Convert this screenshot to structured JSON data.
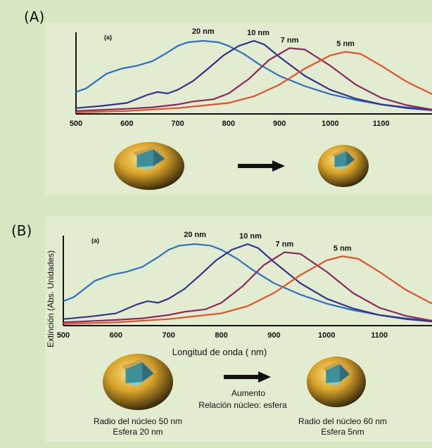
{
  "panels": [
    {
      "label": "(A)",
      "chart_data": {
        "type": "line",
        "panel_tag": "(a)",
        "xlabel": "",
        "ylabel": "",
        "xlim": [
          500,
          1200
        ],
        "xticks": [
          500,
          600,
          700,
          800,
          900,
          1000,
          1100
        ],
        "series": [
          {
            "name": "20 nm",
            "color": "#2f6fc0",
            "x": [
              500,
              520,
              560,
              590,
              620,
              650,
              680,
              700,
              720,
              750,
              780,
              800,
              830,
              860,
              900,
              950,
              1000,
              1050,
              1100,
              1150,
              1200
            ],
            "y": [
              0.3,
              0.35,
              0.55,
              0.62,
              0.66,
              0.72,
              0.84,
              0.93,
              0.98,
              1.0,
              0.98,
              0.93,
              0.82,
              0.68,
              0.52,
              0.38,
              0.27,
              0.19,
              0.13,
              0.09,
              0.06
            ]
          },
          {
            "name": "10 nm",
            "color": "#34338a",
            "x": [
              500,
              550,
              600,
              640,
              660,
              680,
              700,
              730,
              760,
              790,
              820,
              850,
              870,
              900,
              950,
              1000,
              1050,
              1100,
              1150,
              1200
            ],
            "y": [
              0.08,
              0.11,
              0.15,
              0.26,
              0.3,
              0.28,
              0.33,
              0.45,
              0.62,
              0.8,
              0.93,
              1.0,
              0.95,
              0.78,
              0.52,
              0.33,
              0.21,
              0.13,
              0.08,
              0.05
            ]
          },
          {
            "name": "7 nm",
            "color": "#8a2a5a",
            "x": [
              500,
              600,
              650,
              700,
              730,
              770,
              800,
              840,
              880,
              920,
              950,
              1000,
              1050,
              1100,
              1150,
              1200
            ],
            "y": [
              0.04,
              0.07,
              0.09,
              0.13,
              0.17,
              0.2,
              0.28,
              0.48,
              0.74,
              0.9,
              0.88,
              0.66,
              0.4,
              0.22,
              0.12,
              0.06
            ]
          },
          {
            "name": "5 nm",
            "color": "#e0522a",
            "x": [
              500,
              600,
              700,
              800,
              850,
              900,
              950,
              1000,
              1030,
              1060,
              1100,
              1150,
              1200
            ],
            "y": [
              0.02,
              0.04,
              0.08,
              0.15,
              0.24,
              0.4,
              0.62,
              0.8,
              0.85,
              0.82,
              0.66,
              0.44,
              0.27
            ]
          }
        ]
      },
      "shell_left_note": "",
      "shell_right_note": ""
    },
    {
      "label": "(B)",
      "chart_data": {
        "type": "line",
        "panel_tag": "(a)",
        "xlabel": "Longitud de onda (   nm)",
        "ylabel": "Extinción (Abs. Unidades)",
        "xlim": [
          500,
          1200
        ],
        "xticks": [
          500,
          600,
          700,
          800,
          900,
          1000,
          1100
        ],
        "series": [
          {
            "name": "20 nm",
            "color": "#2f6fc0",
            "x": [
              500,
              520,
              560,
              590,
              620,
              650,
              680,
              700,
              720,
              750,
              780,
              800,
              830,
              860,
              900,
              950,
              1000,
              1050,
              1100,
              1150,
              1200
            ],
            "y": [
              0.3,
              0.35,
              0.55,
              0.62,
              0.66,
              0.72,
              0.84,
              0.93,
              0.98,
              1.0,
              0.98,
              0.93,
              0.82,
              0.68,
              0.52,
              0.38,
              0.27,
              0.19,
              0.13,
              0.09,
              0.06
            ]
          },
          {
            "name": "10 nm",
            "color": "#34338a",
            "x": [
              500,
              550,
              600,
              640,
              660,
              680,
              700,
              730,
              760,
              790,
              820,
              850,
              870,
              900,
              950,
              1000,
              1050,
              1100,
              1150,
              1200
            ],
            "y": [
              0.08,
              0.11,
              0.15,
              0.26,
              0.3,
              0.28,
              0.33,
              0.45,
              0.62,
              0.8,
              0.93,
              1.0,
              0.95,
              0.78,
              0.52,
              0.33,
              0.21,
              0.13,
              0.08,
              0.05
            ]
          },
          {
            "name": "7 nm",
            "color": "#8a2a5a",
            "x": [
              500,
              600,
              650,
              700,
              730,
              770,
              800,
              840,
              880,
              920,
              950,
              1000,
              1050,
              1100,
              1150,
              1200
            ],
            "y": [
              0.04,
              0.07,
              0.09,
              0.13,
              0.17,
              0.2,
              0.28,
              0.48,
              0.74,
              0.9,
              0.88,
              0.66,
              0.4,
              0.22,
              0.12,
              0.06
            ]
          },
          {
            "name": "5 nm",
            "color": "#e0522a",
            "x": [
              500,
              600,
              700,
              800,
              850,
              900,
              950,
              1000,
              1030,
              1060,
              1100,
              1150,
              1200
            ],
            "y": [
              0.02,
              0.04,
              0.08,
              0.15,
              0.24,
              0.4,
              0.62,
              0.8,
              0.85,
              0.82,
              0.66,
              0.44,
              0.27
            ]
          }
        ]
      },
      "arrow_caption_line1": "Aumento",
      "arrow_caption_line2": "Relación núcleo: esfera",
      "shell_left_line1": "Radio del núcleo 50 nm",
      "shell_left_line2": "Esfera 20 nm",
      "shell_right_line1": "Radio del núcleo 60 nm",
      "shell_right_line2": "Esfera 5nm"
    }
  ]
}
